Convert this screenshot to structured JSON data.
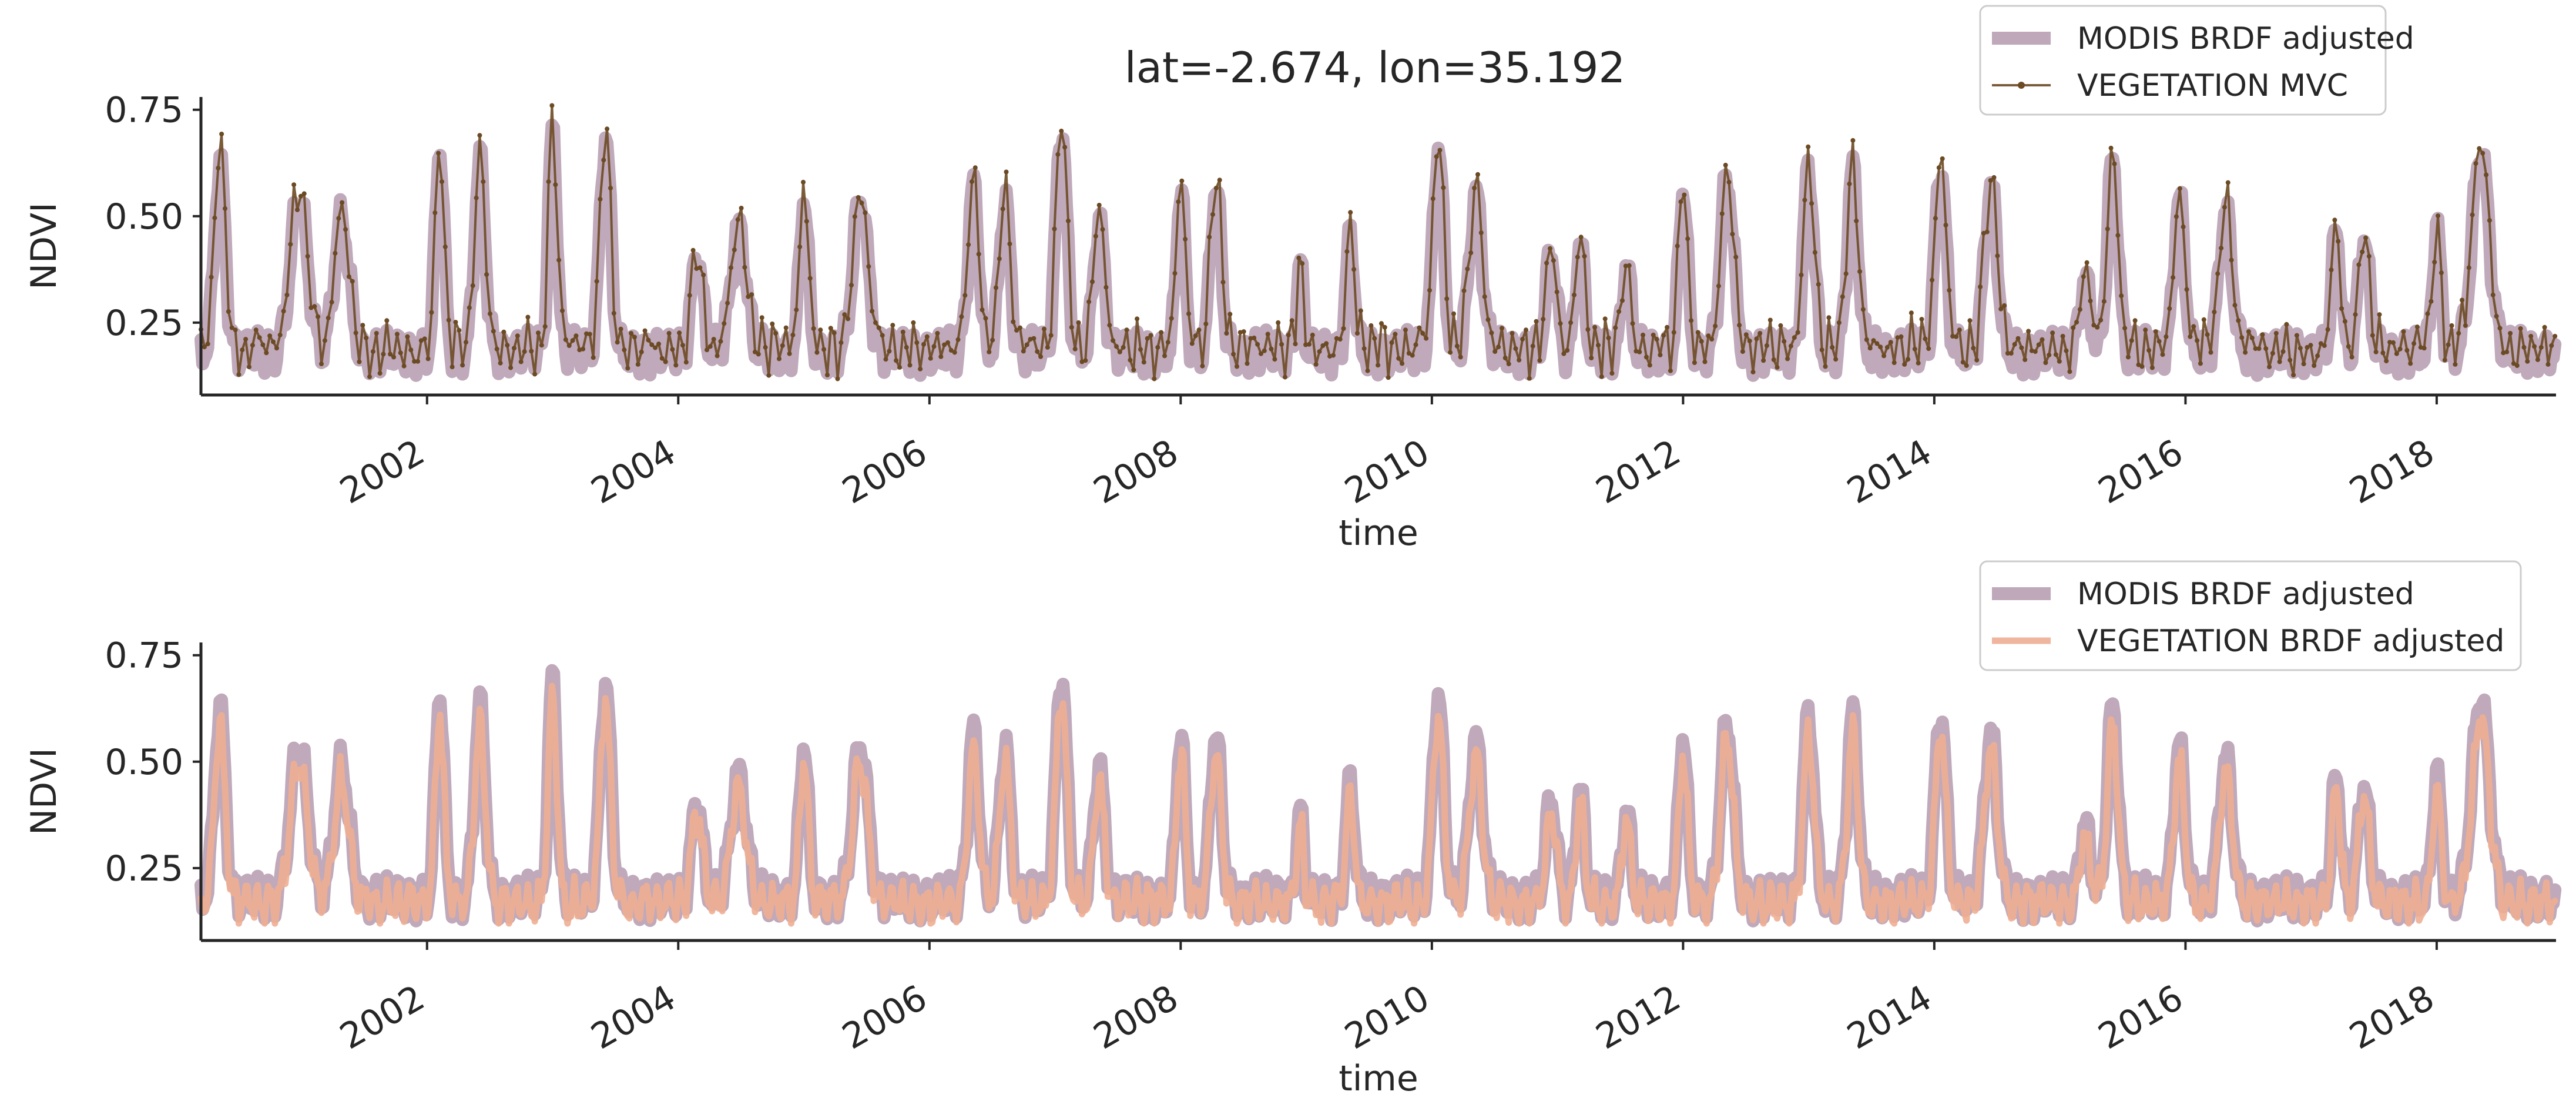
{
  "title": "lat=-2.674,  lon=35.192",
  "colors": {
    "modis": "#b49aae",
    "veg_mvc": "#6b4a24",
    "veg_brdf": "#eeae94",
    "axis": "#262626",
    "text": "#262626"
  },
  "chart_data": [
    {
      "type": "line",
      "xlabel": "time",
      "ylabel": "NDVI",
      "xlim": [
        2000.2,
        2018.95
      ],
      "ylim": [
        0.08,
        0.78
      ],
      "x_ticks": [
        2002,
        2004,
        2006,
        2008,
        2010,
        2012,
        2014,
        2016,
        2018
      ],
      "x_tick_labels": [
        "2002",
        "2004",
        "2006",
        "2008",
        "2010",
        "2012",
        "2014",
        "2016",
        "2018"
      ],
      "y_ticks": [
        0.25,
        0.5,
        0.75
      ],
      "y_tick_labels": [
        "0.25",
        "0.50",
        "0.75"
      ],
      "legend": {
        "location": "top-right",
        "entries": [
          "MODIS BRDF adjusted",
          "VEGETATION MVC"
        ]
      },
      "series": [
        {
          "name": "MODIS BRDF adjusted",
          "style": "thick",
          "color_key": "modis",
          "x": [],
          "y": []
        },
        {
          "name": "VEGETATION MVC",
          "style": "thin-markers",
          "color_key": "veg_mvc",
          "x": [],
          "y": []
        }
      ]
    },
    {
      "type": "line",
      "xlabel": "time",
      "ylabel": "NDVI",
      "xlim": [
        2000.2,
        2018.95
      ],
      "ylim": [
        0.08,
        0.78
      ],
      "x_ticks": [
        2002,
        2004,
        2006,
        2008,
        2010,
        2012,
        2014,
        2016,
        2018
      ],
      "x_tick_labels": [
        "2002",
        "2004",
        "2006",
        "2008",
        "2010",
        "2012",
        "2014",
        "2016",
        "2018"
      ],
      "y_ticks": [
        0.25,
        0.5,
        0.75
      ],
      "y_tick_labels": [
        "0.25",
        "0.50",
        "0.75"
      ],
      "legend": {
        "location": "top-right",
        "entries": [
          "MODIS BRDF adjusted",
          "VEGETATION BRDF adjusted"
        ]
      },
      "series": [
        {
          "name": "MODIS BRDF adjusted",
          "style": "thick",
          "color_key": "modis",
          "x": [],
          "y": []
        },
        {
          "name": "VEGETATION BRDF adjusted",
          "style": "medium",
          "color_key": "veg_brdf",
          "x": [],
          "y": []
        }
      ]
    }
  ]
}
